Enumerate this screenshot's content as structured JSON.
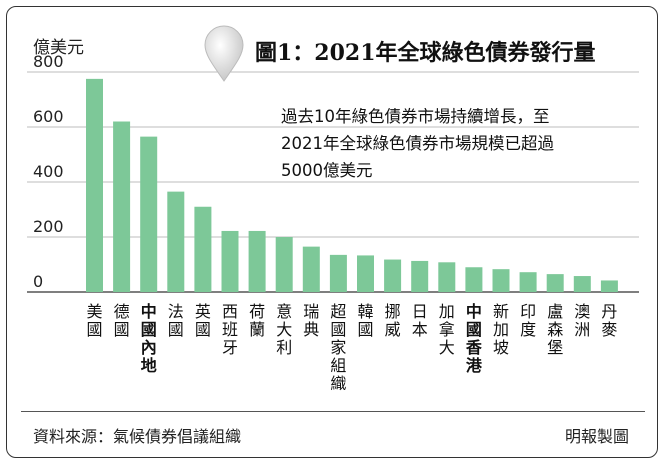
{
  "title": "圖1：2021年全球綠色債券發行量",
  "description_lines": [
    "過去10年綠色債券市場持續增長，至",
    "2021年全球綠色債券市場規模已超過",
    "5000億美元"
  ],
  "source": "資料來源：氣候債券倡議組織",
  "credit": "明報製圖",
  "chart_data": {
    "type": "bar",
    "ylabel": "億美元",
    "ylim": [
      0,
      800
    ],
    "yticks": [
      0,
      200,
      400,
      600,
      800
    ],
    "bar_color": "#7dc898",
    "categories": [
      "美國",
      "德國",
      "中國內地",
      "法國",
      "英國",
      "西班牙",
      "荷蘭",
      "意大利",
      "瑞典",
      "超國家組織",
      "韓國",
      "挪威",
      "日本",
      "加拿大",
      "中國香港",
      "新加坡",
      "印度",
      "盧森堡",
      "澳洲",
      "丹麥"
    ],
    "bold_categories": [
      "中國內地",
      "中國香港"
    ],
    "values": [
      775,
      620,
      565,
      365,
      310,
      222,
      222,
      200,
      165,
      135,
      133,
      118,
      113,
      108,
      90,
      83,
      72,
      65,
      58,
      42
    ]
  }
}
